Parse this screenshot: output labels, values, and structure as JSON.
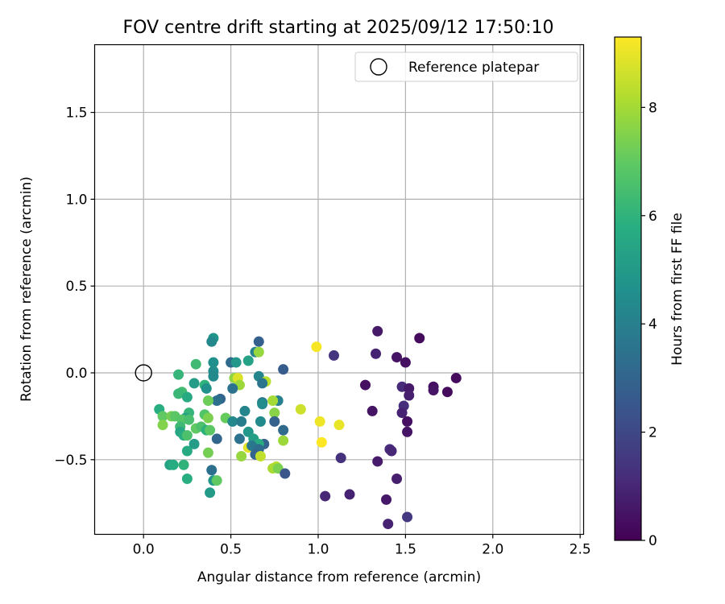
{
  "chart_data": {
    "type": "scatter",
    "title": "FOV centre drift starting at 2025/09/12 17:50:10",
    "xlabel": "Angular distance from reference (arcmin)",
    "ylabel": "Rotation from reference (arcmin)",
    "xlim": [
      -0.28,
      2.52
    ],
    "ylim": [
      -0.93,
      1.89
    ],
    "x_ticks": [
      0.0,
      0.5,
      1.0,
      1.5,
      2.0,
      2.5
    ],
    "x_tick_labels": [
      "0.0",
      "0.5",
      "1.0",
      "1.5",
      "2.0",
      "2.5"
    ],
    "y_ticks": [
      -0.5,
      0.0,
      0.5,
      1.0,
      1.5
    ],
    "y_tick_labels": [
      "−0.5",
      "0.0",
      "0.5",
      "1.0",
      "1.5"
    ],
    "grid": true,
    "legend": {
      "placement": "top-right",
      "entries": [
        "Reference platepar"
      ]
    },
    "reference": {
      "x": 0.0,
      "y": 0.0,
      "label": "Reference platepar"
    },
    "colorbar": {
      "label": "Hours from first FF file",
      "range": [
        0,
        9.3
      ],
      "ticks": [
        0,
        2,
        4,
        6,
        8
      ],
      "tick_labels": [
        "0",
        "2",
        "4",
        "6",
        "8"
      ],
      "colormap": "viridis"
    },
    "points": [
      {
        "x": 1.34,
        "y": 0.24,
        "h": 0.6
      },
      {
        "x": 1.58,
        "y": 0.2,
        "h": 0.3
      },
      {
        "x": 1.33,
        "y": 0.11,
        "h": 0.9
      },
      {
        "x": 1.45,
        "y": 0.09,
        "h": 0.5
      },
      {
        "x": 1.5,
        "y": 0.06,
        "h": 0.4
      },
      {
        "x": 1.09,
        "y": 0.1,
        "h": 1.4
      },
      {
        "x": 1.79,
        "y": -0.03,
        "h": 0.3
      },
      {
        "x": 1.27,
        "y": -0.07,
        "h": 0.4
      },
      {
        "x": 1.48,
        "y": -0.08,
        "h": 1.1
      },
      {
        "x": 1.52,
        "y": -0.09,
        "h": 0.6
      },
      {
        "x": 1.66,
        "y": -0.08,
        "h": 0.4
      },
      {
        "x": 1.66,
        "y": -0.1,
        "h": 0.5
      },
      {
        "x": 1.74,
        "y": -0.11,
        "h": 0.3
      },
      {
        "x": 1.52,
        "y": -0.13,
        "h": 0.8
      },
      {
        "x": 1.49,
        "y": -0.19,
        "h": 1.2
      },
      {
        "x": 1.31,
        "y": -0.22,
        "h": 0.5
      },
      {
        "x": 1.48,
        "y": -0.23,
        "h": 0.9
      },
      {
        "x": 1.51,
        "y": -0.28,
        "h": 0.4
      },
      {
        "x": 1.51,
        "y": -0.34,
        "h": 0.5
      },
      {
        "x": 1.41,
        "y": -0.44,
        "h": 1.2
      },
      {
        "x": 1.42,
        "y": -0.45,
        "h": 1.0
      },
      {
        "x": 1.13,
        "y": -0.49,
        "h": 1.3
      },
      {
        "x": 1.34,
        "y": -0.51,
        "h": 0.7
      },
      {
        "x": 1.45,
        "y": -0.61,
        "h": 0.8
      },
      {
        "x": 1.04,
        "y": -0.71,
        "h": 1.0
      },
      {
        "x": 1.18,
        "y": -0.7,
        "h": 0.9
      },
      {
        "x": 1.39,
        "y": -0.73,
        "h": 0.6
      },
      {
        "x": 1.51,
        "y": -0.83,
        "h": 1.5
      },
      {
        "x": 1.4,
        "y": -0.87,
        "h": 0.9
      },
      {
        "x": 0.99,
        "y": 0.15,
        "h": 9.2
      },
      {
        "x": 1.01,
        "y": -0.28,
        "h": 9.1
      },
      {
        "x": 1.12,
        "y": -0.3,
        "h": 9.0
      },
      {
        "x": 1.02,
        "y": -0.4,
        "h": 9.3
      },
      {
        "x": 0.9,
        "y": -0.21,
        "h": 8.6
      },
      {
        "x": 0.6,
        "y": -0.43,
        "h": 8.9
      },
      {
        "x": 0.4,
        "y": 0.2,
        "h": 4.8
      },
      {
        "x": 0.39,
        "y": 0.18,
        "h": 4.3
      },
      {
        "x": 0.66,
        "y": 0.18,
        "h": 2.8
      },
      {
        "x": 0.64,
        "y": 0.12,
        "h": 4.1
      },
      {
        "x": 0.66,
        "y": 0.12,
        "h": 7.8
      },
      {
        "x": 0.3,
        "y": 0.05,
        "h": 6.3
      },
      {
        "x": 0.4,
        "y": 0.06,
        "h": 4.6
      },
      {
        "x": 0.5,
        "y": 0.06,
        "h": 3.2
      },
      {
        "x": 0.53,
        "y": 0.06,
        "h": 4.9
      },
      {
        "x": 0.6,
        "y": 0.07,
        "h": 5.3
      },
      {
        "x": 0.8,
        "y": 0.02,
        "h": 2.7
      },
      {
        "x": 0.4,
        "y": 0.01,
        "h": 4.5
      },
      {
        "x": 0.2,
        "y": -0.01,
        "h": 6.1
      },
      {
        "x": 0.4,
        "y": -0.02,
        "h": 4.4
      },
      {
        "x": 0.52,
        "y": -0.03,
        "h": 7.7
      },
      {
        "x": 0.54,
        "y": -0.03,
        "h": 8.8
      },
      {
        "x": 0.66,
        "y": -0.02,
        "h": 4.2
      },
      {
        "x": 0.7,
        "y": -0.05,
        "h": 8.3
      },
      {
        "x": 0.29,
        "y": -0.06,
        "h": 5.1
      },
      {
        "x": 0.35,
        "y": -0.07,
        "h": 6.0
      },
      {
        "x": 0.55,
        "y": -0.07,
        "h": 7.9
      },
      {
        "x": 0.68,
        "y": -0.06,
        "h": 3.6
      },
      {
        "x": 0.22,
        "y": -0.11,
        "h": 6.4
      },
      {
        "x": 0.2,
        "y": -0.12,
        "h": 6.2
      },
      {
        "x": 0.25,
        "y": -0.14,
        "h": 5.6
      },
      {
        "x": 0.36,
        "y": -0.09,
        "h": 4.7
      },
      {
        "x": 0.51,
        "y": -0.09,
        "h": 3.5
      },
      {
        "x": 0.44,
        "y": -0.15,
        "h": 3.0
      },
      {
        "x": 0.42,
        "y": -0.16,
        "h": 3.4
      },
      {
        "x": 0.37,
        "y": -0.16,
        "h": 7.2
      },
      {
        "x": 0.68,
        "y": -0.17,
        "h": 3.7
      },
      {
        "x": 0.68,
        "y": -0.18,
        "h": 4.5
      },
      {
        "x": 0.77,
        "y": -0.16,
        "h": 4.0
      },
      {
        "x": 0.74,
        "y": -0.16,
        "h": 8.0
      },
      {
        "x": 0.09,
        "y": -0.21,
        "h": 5.8
      },
      {
        "x": 0.26,
        "y": -0.23,
        "h": 6.1
      },
      {
        "x": 0.58,
        "y": -0.22,
        "h": 4.2
      },
      {
        "x": 0.75,
        "y": -0.23,
        "h": 7.6
      },
      {
        "x": 0.35,
        "y": -0.24,
        "h": 6.7
      },
      {
        "x": 0.11,
        "y": -0.25,
        "h": 7.0
      },
      {
        "x": 0.16,
        "y": -0.25,
        "h": 7.3
      },
      {
        "x": 0.18,
        "y": -0.25,
        "h": 6.9
      },
      {
        "x": 0.24,
        "y": -0.26,
        "h": 5.4
      },
      {
        "x": 0.37,
        "y": -0.26,
        "h": 7.4
      },
      {
        "x": 0.47,
        "y": -0.26,
        "h": 7.1
      },
      {
        "x": 0.22,
        "y": -0.27,
        "h": 6.8
      },
      {
        "x": 0.26,
        "y": -0.27,
        "h": 6.5
      },
      {
        "x": 0.51,
        "y": -0.28,
        "h": 4.3
      },
      {
        "x": 0.56,
        "y": -0.28,
        "h": 3.9
      },
      {
        "x": 0.67,
        "y": -0.28,
        "h": 4.4
      },
      {
        "x": 0.75,
        "y": -0.28,
        "h": 2.9
      },
      {
        "x": 0.11,
        "y": -0.3,
        "h": 7.5
      },
      {
        "x": 0.21,
        "y": -0.31,
        "h": 6.3
      },
      {
        "x": 0.3,
        "y": -0.32,
        "h": 7.0
      },
      {
        "x": 0.33,
        "y": -0.31,
        "h": 6.6
      },
      {
        "x": 0.36,
        "y": -0.33,
        "h": 5.9
      },
      {
        "x": 0.38,
        "y": -0.33,
        "h": 6.9
      },
      {
        "x": 0.21,
        "y": -0.34,
        "h": 5.5
      },
      {
        "x": 0.6,
        "y": -0.34,
        "h": 4.9
      },
      {
        "x": 0.8,
        "y": -0.33,
        "h": 3.2
      },
      {
        "x": 0.23,
        "y": -0.36,
        "h": 5.8
      },
      {
        "x": 0.25,
        "y": -0.36,
        "h": 6.6
      },
      {
        "x": 0.42,
        "y": -0.38,
        "h": 3.1
      },
      {
        "x": 0.55,
        "y": -0.38,
        "h": 3.5
      },
      {
        "x": 0.63,
        "y": -0.38,
        "h": 5.2
      },
      {
        "x": 0.69,
        "y": -0.41,
        "h": 2.9
      },
      {
        "x": 0.29,
        "y": -0.41,
        "h": 5.1
      },
      {
        "x": 0.66,
        "y": -0.41,
        "h": 5.7
      },
      {
        "x": 0.8,
        "y": -0.39,
        "h": 7.9
      },
      {
        "x": 0.62,
        "y": -0.42,
        "h": 3.7
      },
      {
        "x": 0.66,
        "y": -0.44,
        "h": 3.3
      },
      {
        "x": 0.25,
        "y": -0.45,
        "h": 5.6
      },
      {
        "x": 0.37,
        "y": -0.46,
        "h": 7.3
      },
      {
        "x": 0.56,
        "y": -0.48,
        "h": 7.8
      },
      {
        "x": 0.64,
        "y": -0.47,
        "h": 3.0
      },
      {
        "x": 0.67,
        "y": -0.48,
        "h": 8.4
      },
      {
        "x": 0.15,
        "y": -0.53,
        "h": 5.3
      },
      {
        "x": 0.17,
        "y": -0.53,
        "h": 5.7
      },
      {
        "x": 0.23,
        "y": -0.53,
        "h": 6.0
      },
      {
        "x": 0.76,
        "y": -0.54,
        "h": 8.3
      },
      {
        "x": 0.74,
        "y": -0.55,
        "h": 8.1
      },
      {
        "x": 0.77,
        "y": -0.55,
        "h": 7.4
      },
      {
        "x": 0.39,
        "y": -0.56,
        "h": 3.4
      },
      {
        "x": 0.81,
        "y": -0.58,
        "h": 2.5
      },
      {
        "x": 0.25,
        "y": -0.61,
        "h": 5.8
      },
      {
        "x": 0.4,
        "y": -0.62,
        "h": 4.9
      },
      {
        "x": 0.42,
        "y": -0.62,
        "h": 7.0
      },
      {
        "x": 0.38,
        "y": -0.69,
        "h": 5.0
      }
    ]
  }
}
